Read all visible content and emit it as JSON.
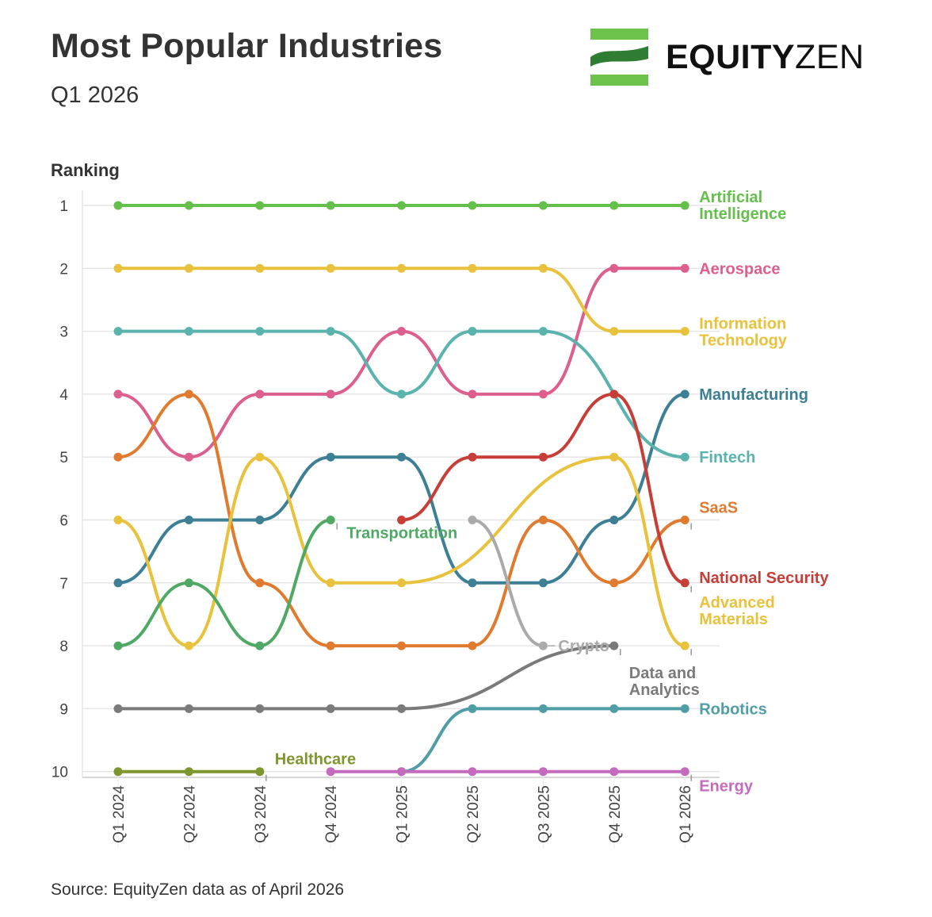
{
  "header": {
    "title": "Most Popular Industries",
    "subtitle": "Q1 2026",
    "logo_text_bold": "EQUITY",
    "logo_text_regular": "ZEN",
    "logo_colors": [
      "#6cc24a",
      "#2e7d32"
    ]
  },
  "footer": {
    "source": "Source: EquityZen data as of April 2026"
  },
  "chart_data": {
    "type": "line",
    "subtype": "bump",
    "ylabel": "Ranking",
    "y_reversed": true,
    "ylim": [
      1,
      10
    ],
    "yticks": [
      "1",
      "2",
      "3",
      "4",
      "5",
      "6",
      "7",
      "8",
      "9",
      "10"
    ],
    "categories": [
      "Q1 2024",
      "Q2 2024",
      "Q3 2024",
      "Q4 2024",
      "Q1 2025",
      "Q2 2025",
      "Q3 2025",
      "Q4 2025",
      "Q1 2026"
    ],
    "grid": "horizontal",
    "series": [
      {
        "name": "Artificial Intelligence",
        "color": "#64bf4b",
        "values": [
          1,
          1,
          1,
          1,
          1,
          1,
          1,
          1,
          1
        ]
      },
      {
        "name": "Aerospace",
        "color": "#dc5f8e",
        "values": [
          4,
          5,
          4,
          4,
          3,
          4,
          4,
          2,
          2
        ]
      },
      {
        "name": "Information Technology",
        "color": "#e8c23d",
        "values": [
          2,
          2,
          2,
          2,
          2,
          2,
          2,
          3,
          3
        ]
      },
      {
        "name": "Manufacturing",
        "color": "#3d7f95",
        "values": [
          7,
          6,
          6,
          5,
          5,
          7,
          7,
          6,
          4
        ]
      },
      {
        "name": "Fintech",
        "color": "#5bb3ad",
        "values": [
          3,
          3,
          3,
          3,
          4,
          3,
          3,
          null,
          5
        ]
      },
      {
        "name": "SaaS",
        "color": "#e07a2e",
        "values": [
          5,
          4,
          7,
          8,
          8,
          8,
          6,
          7,
          6
        ]
      },
      {
        "name": "National Security",
        "color": "#c73e38",
        "values": [
          null,
          null,
          null,
          null,
          6,
          5,
          5,
          4,
          7
        ]
      },
      {
        "name": "Advanced Materials",
        "color": "#e8c23d",
        "values": [
          6,
          8,
          5,
          7,
          7,
          null,
          null,
          5,
          8
        ]
      },
      {
        "name": "Transportation",
        "color": "#4fa864",
        "values": [
          8,
          7,
          8,
          6,
          null,
          null,
          null,
          null,
          null
        ]
      },
      {
        "name": "Crypto",
        "color": "#aaaaaa",
        "values": [
          null,
          null,
          null,
          null,
          null,
          6,
          8,
          null,
          null
        ]
      },
      {
        "name": "Data and Analytics",
        "color": "#7a7a7a",
        "values": [
          9,
          9,
          9,
          9,
          9,
          null,
          null,
          8,
          null
        ]
      },
      {
        "name": "Robotics",
        "color": "#4f9ea6",
        "values": [
          null,
          null,
          null,
          null,
          10,
          9,
          9,
          9,
          9
        ]
      },
      {
        "name": "Healthcare",
        "color": "#7d962e",
        "values": [
          10,
          10,
          10,
          null,
          null,
          null,
          null,
          null,
          null
        ]
      },
      {
        "name": "Energy",
        "color": "#c46bbd",
        "values": [
          null,
          null,
          null,
          10,
          10,
          10,
          10,
          10,
          10
        ]
      }
    ]
  }
}
